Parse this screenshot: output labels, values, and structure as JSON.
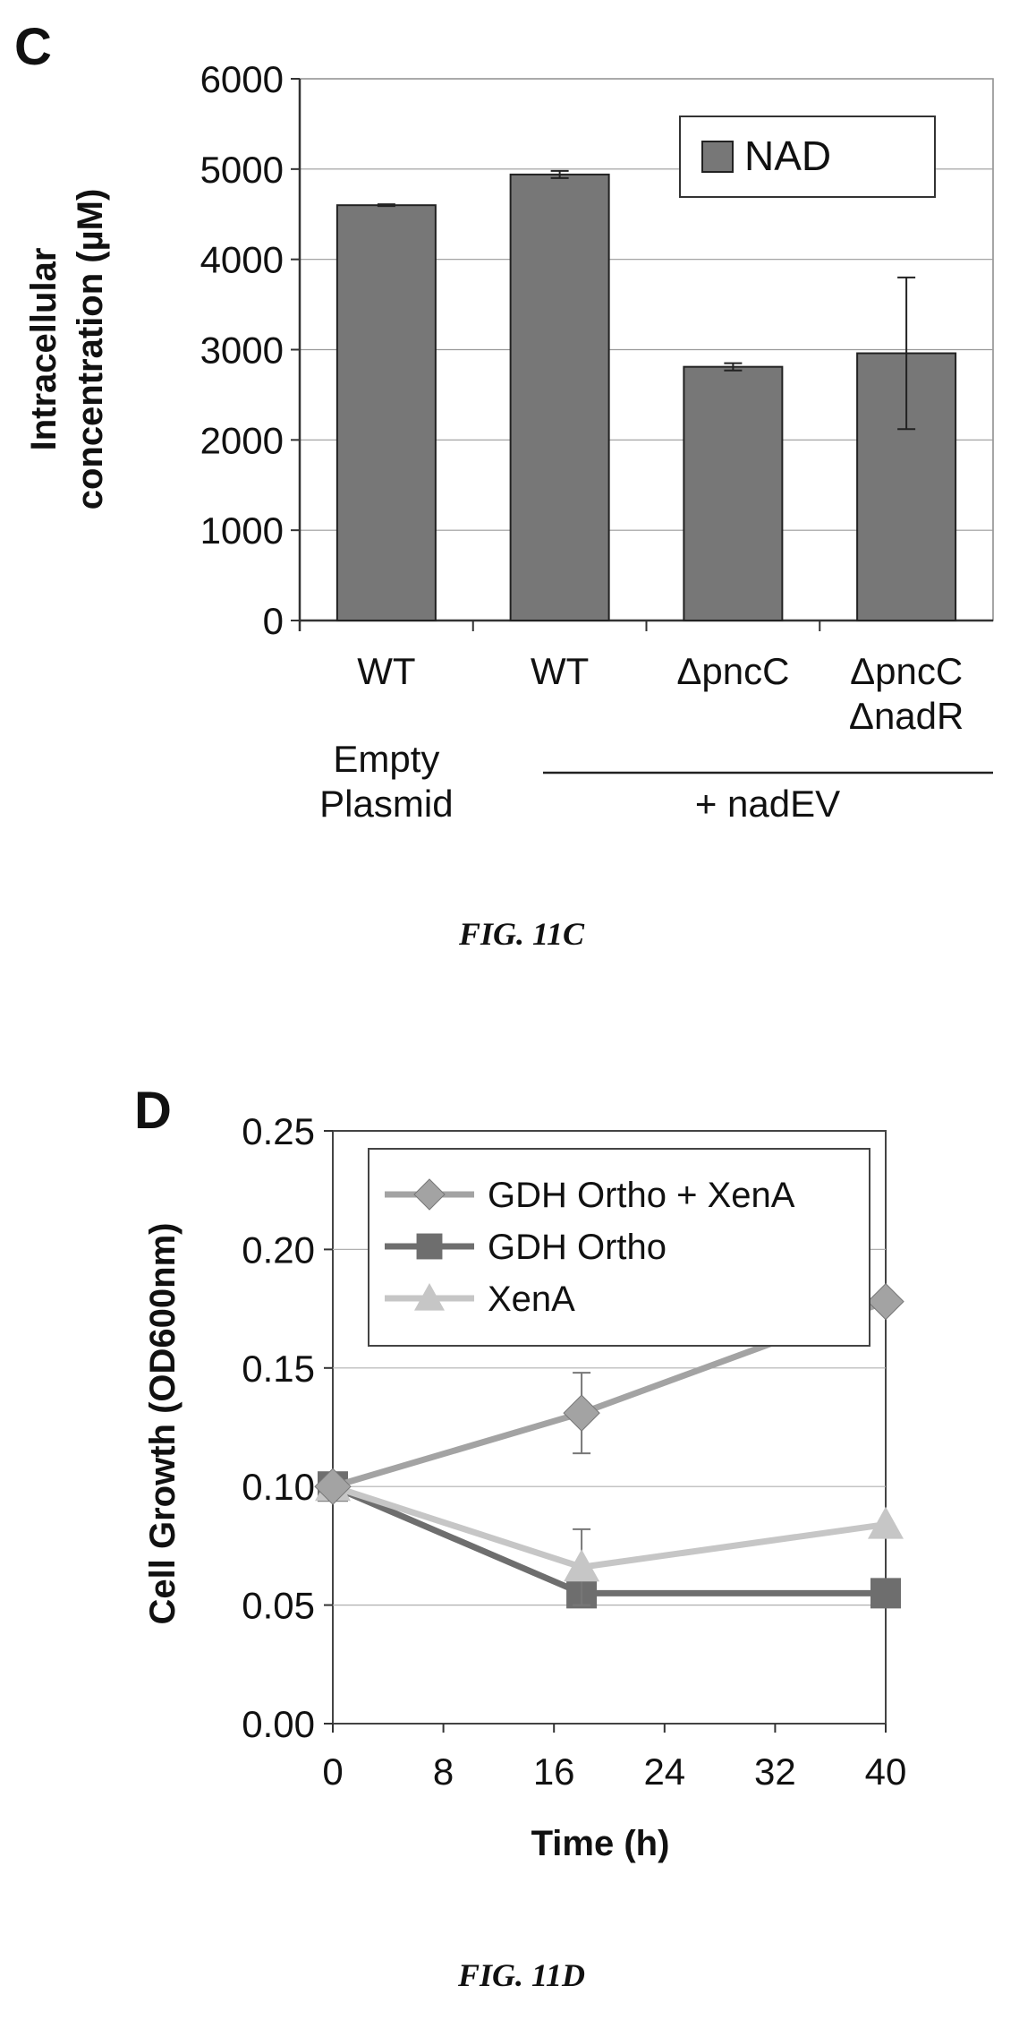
{
  "figures": [
    {
      "panel_letter": "C",
      "caption": "FIG. 11C"
    },
    {
      "panel_letter": "D",
      "caption": "FIG. 11D"
    }
  ],
  "chart_data": [
    {
      "type": "bar",
      "ylabel_line1": "Intracellular",
      "ylabel_line2": "concentration (µM)",
      "xlabel": "",
      "ylim": [
        0,
        6000
      ],
      "yticks": [
        0,
        1000,
        2000,
        3000,
        4000,
        5000,
        6000
      ],
      "grid": true,
      "legend_position": "top-right",
      "categories": [
        [
          "WT"
        ],
        [
          "WT"
        ],
        [
          "ΔpncC"
        ],
        [
          "ΔpncC",
          "ΔnadR"
        ]
      ],
      "group_labels": [
        {
          "lines": [
            "Empty",
            "Plasmid"
          ]
        },
        {
          "lines": [
            "+ nadEV"
          ]
        }
      ],
      "series": [
        {
          "name": "NAD",
          "color": "#777777",
          "values": [
            4600,
            4940,
            2810,
            2960
          ],
          "errors": [
            10,
            40,
            40,
            840
          ]
        }
      ]
    },
    {
      "type": "line",
      "xlabel": "Time (h)",
      "ylabel": "Cell Growth (OD600nm)",
      "xlim": [
        0,
        40
      ],
      "ylim": [
        0,
        0.25
      ],
      "xticks": [
        "0",
        "8",
        "16",
        "24",
        "32",
        "40"
      ],
      "yticks": [
        "0.00",
        "0.05",
        "0.10",
        "0.15",
        "0.20",
        "0.25"
      ],
      "grid": true,
      "legend_position": "top-left",
      "x": [
        0,
        18,
        40
      ],
      "series": [
        {
          "name": "GDH Ortho + XenA",
          "marker": "diamond",
          "color": "#a3a3a3",
          "values": [
            0.1,
            0.131,
            0.178
          ],
          "errors": [
            0,
            0.017,
            0
          ]
        },
        {
          "name": "GDH Ortho",
          "marker": "square",
          "color": "#6e6e6e",
          "values": [
            0.1,
            0.055,
            0.055
          ],
          "errors": [
            0,
            0,
            0
          ]
        },
        {
          "name": "XenA",
          "marker": "triangle",
          "color": "#c6c6c6",
          "values": [
            0.1,
            0.066,
            0.084
          ],
          "errors": [
            0,
            0.016,
            0
          ]
        }
      ]
    }
  ]
}
